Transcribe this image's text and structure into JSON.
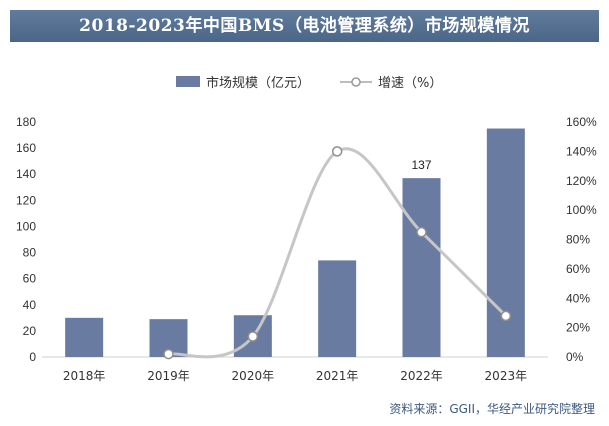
{
  "chart_data": {
    "type": "bar",
    "title": "2018-2023年中国BMS（电池管理系统）市场规模情况",
    "categories": [
      "2018年",
      "2019年",
      "2020年",
      "2021年",
      "2022年",
      "2023年"
    ],
    "series": [
      {
        "name": "市场规模（亿元）",
        "type": "bar",
        "axis": "left",
        "values": [
          30,
          29,
          32,
          74,
          137,
          175
        ],
        "data_labels": {
          "4": "137"
        }
      },
      {
        "name": "增速（%）",
        "type": "line",
        "axis": "right",
        "values": [
          null,
          2,
          14,
          140,
          85,
          28
        ]
      }
    ],
    "y_left": {
      "ticks": [
        0,
        20,
        40,
        60,
        80,
        100,
        120,
        140,
        160,
        180
      ],
      "ylim": [
        0,
        180
      ]
    },
    "y_right": {
      "ticks": [
        "0%",
        "20%",
        "40%",
        "60%",
        "80%",
        "100%",
        "120%",
        "140%",
        "160%"
      ],
      "ylim": [
        0,
        160
      ]
    },
    "legend_position": "top-center",
    "colors": {
      "bar": "#6a7ba1",
      "line": "#c6c6c6",
      "banner": "#56718f",
      "source": "#3d5a80"
    }
  },
  "source_text": "资料来源：GGII，华经产业研究院整理"
}
